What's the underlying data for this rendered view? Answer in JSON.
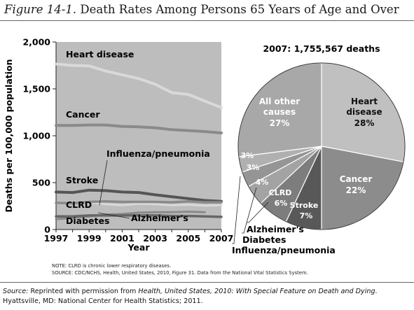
{
  "figure": {
    "label": "Figure 14-1.",
    "title": "Death Rates Among Persons 65 Years of Age and Over"
  },
  "colors": {
    "plot_bg": "#bdbdbd",
    "line_dark": "#555555",
    "line_mid": "#8a8a8a",
    "line_light": "#d9d9d9",
    "pie_heart": "#c0c0c0",
    "pie_cancer": "#8c8c8c",
    "pie_stroke": "#585858",
    "pie_clrd": "#7d7d7d",
    "pie_alz": "#a3a3a3",
    "pie_diabetes": "#959595",
    "pie_flu": "#b0b0b0",
    "pie_other": "#a8a8a8"
  },
  "chart_data": [
    {
      "type": "line",
      "title": "",
      "xlabel": "Year",
      "ylabel": "Deaths per 100,000 population",
      "x": [
        1997,
        1998,
        1999,
        2000,
        2001,
        2002,
        2003,
        2004,
        2005,
        2006,
        2007
      ],
      "x_tick_labels": [
        "1997",
        "1999",
        "2001",
        "2003",
        "2005",
        "2007"
      ],
      "y_tick_labels": [
        "0",
        "500",
        "1,000",
        "1,500",
        "2,000"
      ],
      "xlim": [
        1997,
        2007
      ],
      "ylim": [
        0,
        2000
      ],
      "grid": false,
      "series": [
        {
          "name": "Heart disease",
          "values": [
            1765,
            1750,
            1745,
            1690,
            1650,
            1610,
            1550,
            1460,
            1440,
            1370,
            1300
          ]
        },
        {
          "name": "Cancer",
          "values": [
            1110,
            1110,
            1115,
            1115,
            1100,
            1095,
            1085,
            1065,
            1055,
            1045,
            1030
          ]
        },
        {
          "name": "Influenza/pneumonia",
          "values": [
            285,
            285,
            290,
            270,
            260,
            275,
            270,
            260,
            265,
            255,
            260
          ]
        },
        {
          "name": "Stroke",
          "values": [
            400,
            395,
            420,
            415,
            400,
            395,
            370,
            350,
            330,
            310,
            300
          ]
        },
        {
          "name": "CLRD",
          "values": [
            285,
            280,
            295,
            300,
            295,
            295,
            295,
            290,
            300,
            290,
            290
          ]
        },
        {
          "name": "Alzheimer's",
          "values": [
            110,
            125,
            140,
            160,
            165,
            180,
            185,
            185,
            190,
            185,
            null
          ]
        },
        {
          "name": "Diabetes",
          "values": [
            140,
            140,
            150,
            150,
            150,
            150,
            150,
            145,
            145,
            140,
            135
          ]
        }
      ],
      "labels": {
        "heart": "Heart disease",
        "cancer": "Cancer",
        "flu": "Influenza/pneumonia",
        "stroke": "Stroke",
        "clrd": "CLRD",
        "alz": "Alzheimer's",
        "diabetes": "Diabetes"
      }
    },
    {
      "type": "pie",
      "title": "2007: 1,755,567 deaths",
      "slices": [
        {
          "label": "Heart disease",
          "value": 28,
          "text": "28%"
        },
        {
          "label": "Cancer",
          "value": 22,
          "text": "22%"
        },
        {
          "label": "Stroke",
          "value": 7,
          "text": "7%"
        },
        {
          "label": "CLRD",
          "value": 6,
          "text": "6%"
        },
        {
          "label": "Alzheimer's",
          "value": 4,
          "text": "4%"
        },
        {
          "label": "Diabetes",
          "value": 3,
          "text": "3%"
        },
        {
          "label": "Influenza/pneumonia",
          "value": 3,
          "text": "3%"
        },
        {
          "label": "All other causes",
          "value": 27,
          "text": "27%"
        }
      ]
    }
  ],
  "pie_labels": {
    "heart_1": "Heart",
    "heart_2": "disease",
    "heart_pct": "28%",
    "cancer": "Cancer",
    "cancer_pct": "22%",
    "other_1": "All other",
    "other_2": "causes",
    "other_pct": "27%",
    "stroke": "Stroke",
    "stroke_pct": "7%",
    "clrd": "CLRD",
    "clrd_pct": "6%",
    "alz_pct": "4%",
    "diabetes_pct": "3%",
    "flu_pct": "3%",
    "alz_ext": "Alzheimer's",
    "diabetes_ext": "Diabetes",
    "flu_ext": "Influenza/pneumonia"
  },
  "notes": {
    "line1": "NOTE: CLRD is chronic lower respiratory diseases.",
    "line2": "SOURCE: CDC/NCHS, Health, United States, 2010, Figure 31. Data from the National Vital Statistics System."
  },
  "source": {
    "label": "Source:",
    "text": "Reprinted with permission from",
    "pub": "Health, United States, 2010: With Special Feature on Death and Dying",
    "rest": ". Hyattsville, MD: National Center for Health Statistics; 2011."
  }
}
